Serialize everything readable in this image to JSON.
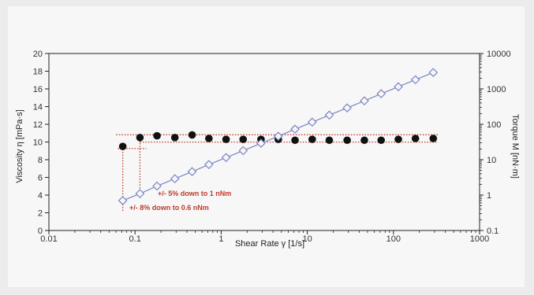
{
  "chart_data": {
    "type": "scatter",
    "title": "",
    "xlabel": "Shear Rate γ [1/s]",
    "ylabel": "Viscosity η [mPa·s]",
    "ylabel_right": "Torque M [nN·m]",
    "x_scale": "log",
    "xlim": [
      0.01,
      1000
    ],
    "ylim": [
      0,
      20
    ],
    "ylim_right": [
      0.1,
      10000
    ],
    "y_right_scale": "log",
    "x_ticks": [
      "0.01",
      "0.1",
      "1",
      "10",
      "100",
      "1000"
    ],
    "x_tick_values": [
      0.01,
      0.1,
      1,
      10,
      100,
      1000
    ],
    "y_ticks": [
      "0",
      "2",
      "4",
      "6",
      "8",
      "10",
      "12",
      "14",
      "16",
      "18",
      "20"
    ],
    "y_tick_values": [
      0,
      2,
      4,
      6,
      8,
      10,
      12,
      14,
      16,
      18,
      20
    ],
    "y_right_ticks": [
      "0.1",
      "1",
      "10",
      "100",
      "1000",
      "10000"
    ],
    "y_right_tick_values": [
      0.1,
      1,
      10,
      100,
      1000,
      10000
    ],
    "grid": false,
    "series": [
      {
        "axis": "left",
        "marker": "filled-circle",
        "color": "#111111",
        "x": [
          0.072,
          0.114,
          0.18,
          0.29,
          0.46,
          0.72,
          1.14,
          1.8,
          2.9,
          4.6,
          7.2,
          11.4,
          18,
          29,
          46,
          72,
          114,
          180,
          290
        ],
        "y": [
          9.5,
          10.5,
          10.7,
          10.5,
          10.8,
          10.4,
          10.3,
          10.3,
          10.3,
          10.3,
          10.2,
          10.3,
          10.2,
          10.2,
          10.2,
          10.2,
          10.3,
          10.4,
          10.4
        ]
      },
      {
        "axis": "right",
        "marker": "open-diamond",
        "color": "#7b86c4",
        "x": [
          0.072,
          0.114,
          0.18,
          0.29,
          0.46,
          0.72,
          1.14,
          1.8,
          2.9,
          4.6,
          7.2,
          11.4,
          18,
          29,
          46,
          72,
          114,
          180,
          290
        ],
        "y": [
          0.7,
          1.1,
          1.8,
          2.9,
          4.6,
          7.3,
          11.5,
          18,
          29,
          46,
          73,
          115,
          182,
          290,
          460,
          730,
          1150,
          1820,
          2900
        ]
      }
    ],
    "annotations": [
      {
        "text": "+/- 5% down to 1 nNm",
        "color": "#c0392b"
      },
      {
        "text": "+/- 8% down to 0.6 nNm",
        "color": "#c0392b"
      }
    ]
  }
}
